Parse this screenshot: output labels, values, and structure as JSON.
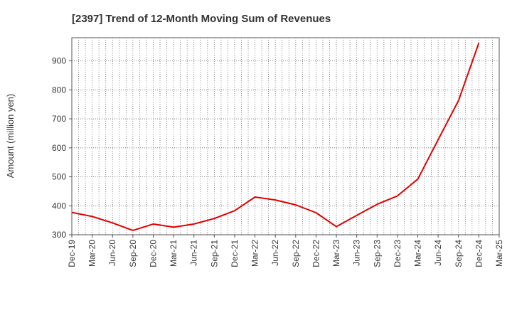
{
  "chart_data": {
    "type": "line",
    "title": "[2397]  Trend of 12-Month Moving Sum of Revenues",
    "ylabel": "Amount (million yen)",
    "xlabel": "",
    "ylim": [
      300,
      980
    ],
    "yticks": [
      300,
      400,
      500,
      600,
      700,
      800,
      900
    ],
    "grid": true,
    "line_color": "#e00000",
    "categories": [
      "Dec-19",
      "Mar-20",
      "Jun-20",
      "Sep-20",
      "Dec-20",
      "Mar-21",
      "Jun-21",
      "Sep-21",
      "Dec-21",
      "Mar-22",
      "Jun-22",
      "Sep-22",
      "Dec-22",
      "Mar-23",
      "Jun-23",
      "Sep-23",
      "Dec-23",
      "Mar-24",
      "Jun-24",
      "Sep-24",
      "Dec-24",
      "Mar-25"
    ],
    "series": [
      {
        "values": [
          377,
          363,
          341,
          315,
          337,
          326,
          337,
          356,
          383,
          430,
          420,
          403,
          376,
          328,
          367,
          405,
          434,
          492,
          628,
          763,
          962,
          null
        ]
      }
    ]
  }
}
